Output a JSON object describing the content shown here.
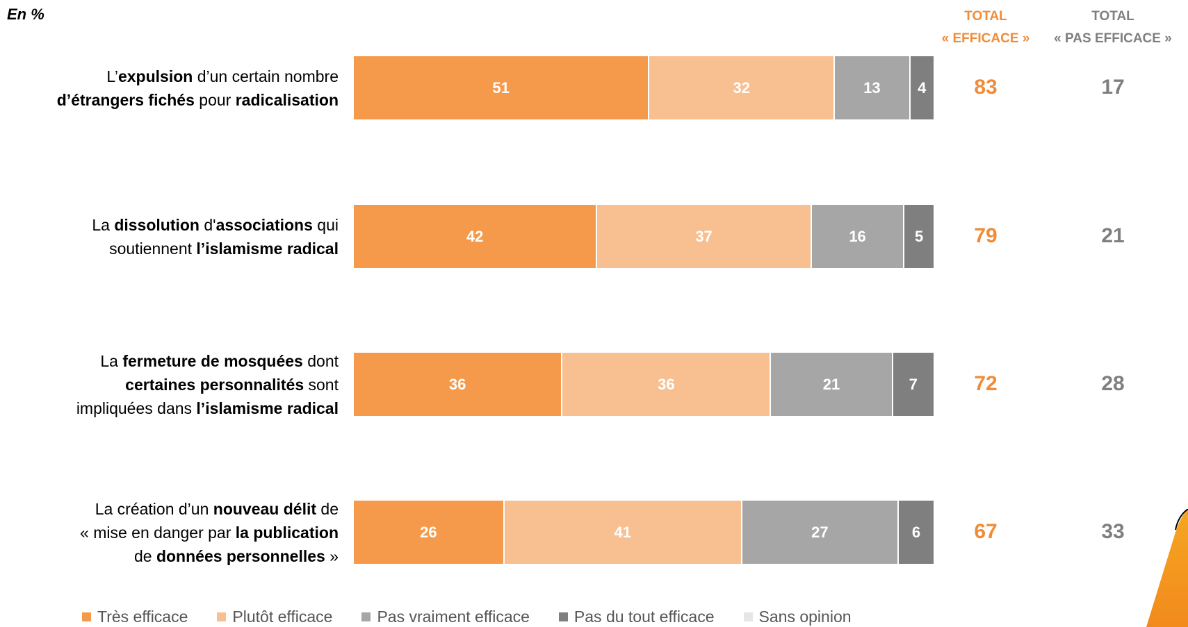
{
  "unit_label": "En %",
  "headers": {
    "efficace": {
      "line1": "TOTAL",
      "line2": "« EFFICACE »"
    },
    "pas_efficace": {
      "line1": "TOTAL",
      "line2": "« PAS EFFICACE »"
    }
  },
  "colors": {
    "tres_efficace": "#f59a4b",
    "plutot_efficace": "#f8bf91",
    "pas_vraiment": "#a6a6a6",
    "pas_du_tout": "#7f7f7f",
    "sans_opinion": "#e6e6e6",
    "total_efficace_text": "#f08c37",
    "total_pas_efficace_text": "#7f7f7f",
    "header_efficace_text": "#f08c37",
    "header_pas_efficace_text": "#7f7f7f"
  },
  "chart_data": {
    "type": "bar",
    "orientation": "horizontal",
    "stacked": true,
    "unit": "En %",
    "categories": [
      [
        {
          "t": "L’"
        },
        {
          "t": "expulsion",
          "b": true
        },
        {
          "t": " d’un certain nombre"
        },
        {
          "br": true
        },
        {
          "t": "d’étrangers fichés",
          "b": true
        },
        {
          "t": " pour "
        },
        {
          "t": "radicalisation",
          "b": true
        }
      ],
      [
        {
          "t": "La "
        },
        {
          "t": "dissolution",
          "b": true
        },
        {
          "t": " d'"
        },
        {
          "t": "associations",
          "b": true
        },
        {
          "t": " qui"
        },
        {
          "br": true
        },
        {
          "t": "soutiennent "
        },
        {
          "t": "l’islamisme radical",
          "b": true
        }
      ],
      [
        {
          "t": "La "
        },
        {
          "t": "fermeture de mosquées",
          "b": true
        },
        {
          "t": " dont"
        },
        {
          "br": true
        },
        {
          "t": "certaines personnalités",
          "b": true
        },
        {
          "t": " sont"
        },
        {
          "br": true
        },
        {
          "t": "impliquées dans "
        },
        {
          "t": "l’islamisme radical",
          "b": true
        }
      ],
      [
        {
          "t": "La création d’un "
        },
        {
          "t": "nouveau délit",
          "b": true
        },
        {
          "t": " de"
        },
        {
          "br": true
        },
        {
          "t": "« mise en danger par "
        },
        {
          "t": "la publication",
          "b": true
        },
        {
          "br": true
        },
        {
          "t": "de "
        },
        {
          "t": "données personnelles",
          "b": true
        },
        {
          "t": " »"
        }
      ]
    ],
    "series": [
      {
        "name": "Très efficace",
        "values": [
          51,
          42,
          36,
          26
        ]
      },
      {
        "name": "Plutôt efficace",
        "values": [
          32,
          37,
          36,
          41
        ]
      },
      {
        "name": "Pas vraiment efficace",
        "values": [
          13,
          16,
          21,
          27
        ]
      },
      {
        "name": "Pas du tout efficace",
        "values": [
          4,
          5,
          7,
          6
        ]
      },
      {
        "name": "Sans opinion",
        "values": [
          0,
          0,
          0,
          0
        ]
      }
    ],
    "totals_efficace": [
      83,
      79,
      72,
      67
    ],
    "totals_pas_efficace": [
      17,
      21,
      28,
      33
    ],
    "xlim": [
      0,
      100
    ],
    "legend_position": "bottom"
  }
}
